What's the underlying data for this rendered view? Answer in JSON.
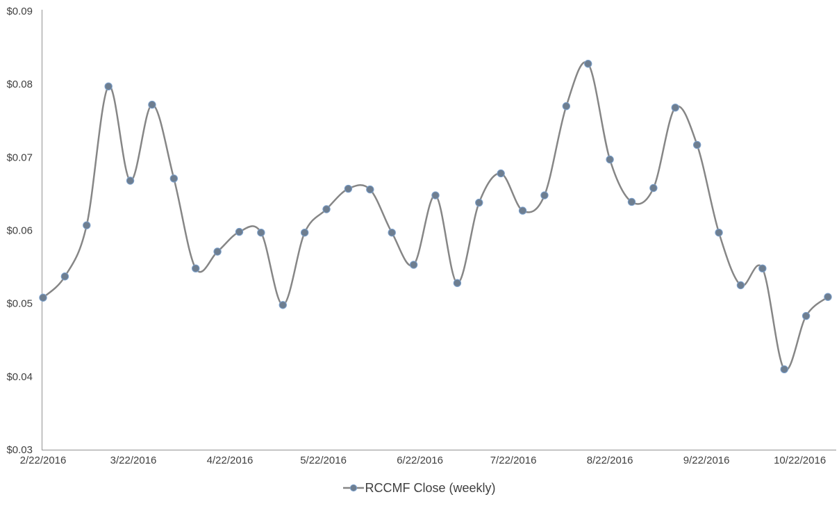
{
  "chart_data": {
    "type": "line",
    "title": "",
    "xlabel": "",
    "ylabel": "",
    "grid": false,
    "smooth": true,
    "marker": "circle",
    "legend_position": "bottom",
    "ylim": [
      0.03,
      0.09
    ],
    "xlim_days": [
      0,
      252
    ],
    "y_tick_labels": [
      "$0.09",
      "$0.08",
      "$0.07",
      "$0.06",
      "$0.05",
      "$0.04",
      "$0.03"
    ],
    "y_tick_values": [
      0.09,
      0.08,
      0.07,
      0.06,
      0.05,
      0.04,
      0.03
    ],
    "x_tick_labels": [
      "2/22/2016",
      "3/22/2016",
      "4/22/2016",
      "5/22/2016",
      "6/22/2016",
      "7/22/2016",
      "8/22/2016",
      "9/22/2016",
      "10/22/2016"
    ],
    "x_tick_day_offsets": [
      0,
      29,
      60,
      90,
      121,
      151,
      182,
      213,
      243
    ],
    "series": [
      {
        "name": "RCCMF Close (weekly)",
        "x": [
          "2/22/2016",
          "2/29/2016",
          "3/7/2016",
          "3/14/2016",
          "3/21/2016",
          "3/28/2016",
          "4/4/2016",
          "4/11/2016",
          "4/18/2016",
          "4/25/2016",
          "5/2/2016",
          "5/9/2016",
          "5/16/2016",
          "5/23/2016",
          "5/30/2016",
          "6/6/2016",
          "6/13/2016",
          "6/20/2016",
          "6/27/2016",
          "7/4/2016",
          "7/11/2016",
          "7/18/2016",
          "7/25/2016",
          "8/1/2016",
          "8/8/2016",
          "8/15/2016",
          "8/22/2016",
          "8/29/2016",
          "9/5/2016",
          "9/12/2016",
          "9/19/2016",
          "9/26/2016",
          "10/3/2016",
          "10/10/2016",
          "10/17/2016",
          "10/24/2016",
          "10/31/2016"
        ],
        "values": [
          0.0508,
          0.0537,
          0.0607,
          0.0797,
          0.0668,
          0.0772,
          0.0671,
          0.0548,
          0.0571,
          0.0598,
          0.0597,
          0.0498,
          0.0597,
          0.0629,
          0.0657,
          0.0656,
          0.0597,
          0.0553,
          0.0648,
          0.0528,
          0.0638,
          0.0678,
          0.0627,
          0.0648,
          0.077,
          0.0828,
          0.0697,
          0.0639,
          0.0658,
          0.0768,
          0.0717,
          0.0597,
          0.0525,
          0.0548,
          0.041,
          0.0483,
          0.0509
        ]
      }
    ]
  },
  "legend": {
    "label": "RCCMF Close (weekly)"
  },
  "colors": {
    "line": "#868686",
    "marker_fill": "#6E7E90",
    "marker_border": "#7BA0CC",
    "axis_line": "#929292",
    "tick_text": "#3F3F3F",
    "background": "#FFFFFF"
  }
}
